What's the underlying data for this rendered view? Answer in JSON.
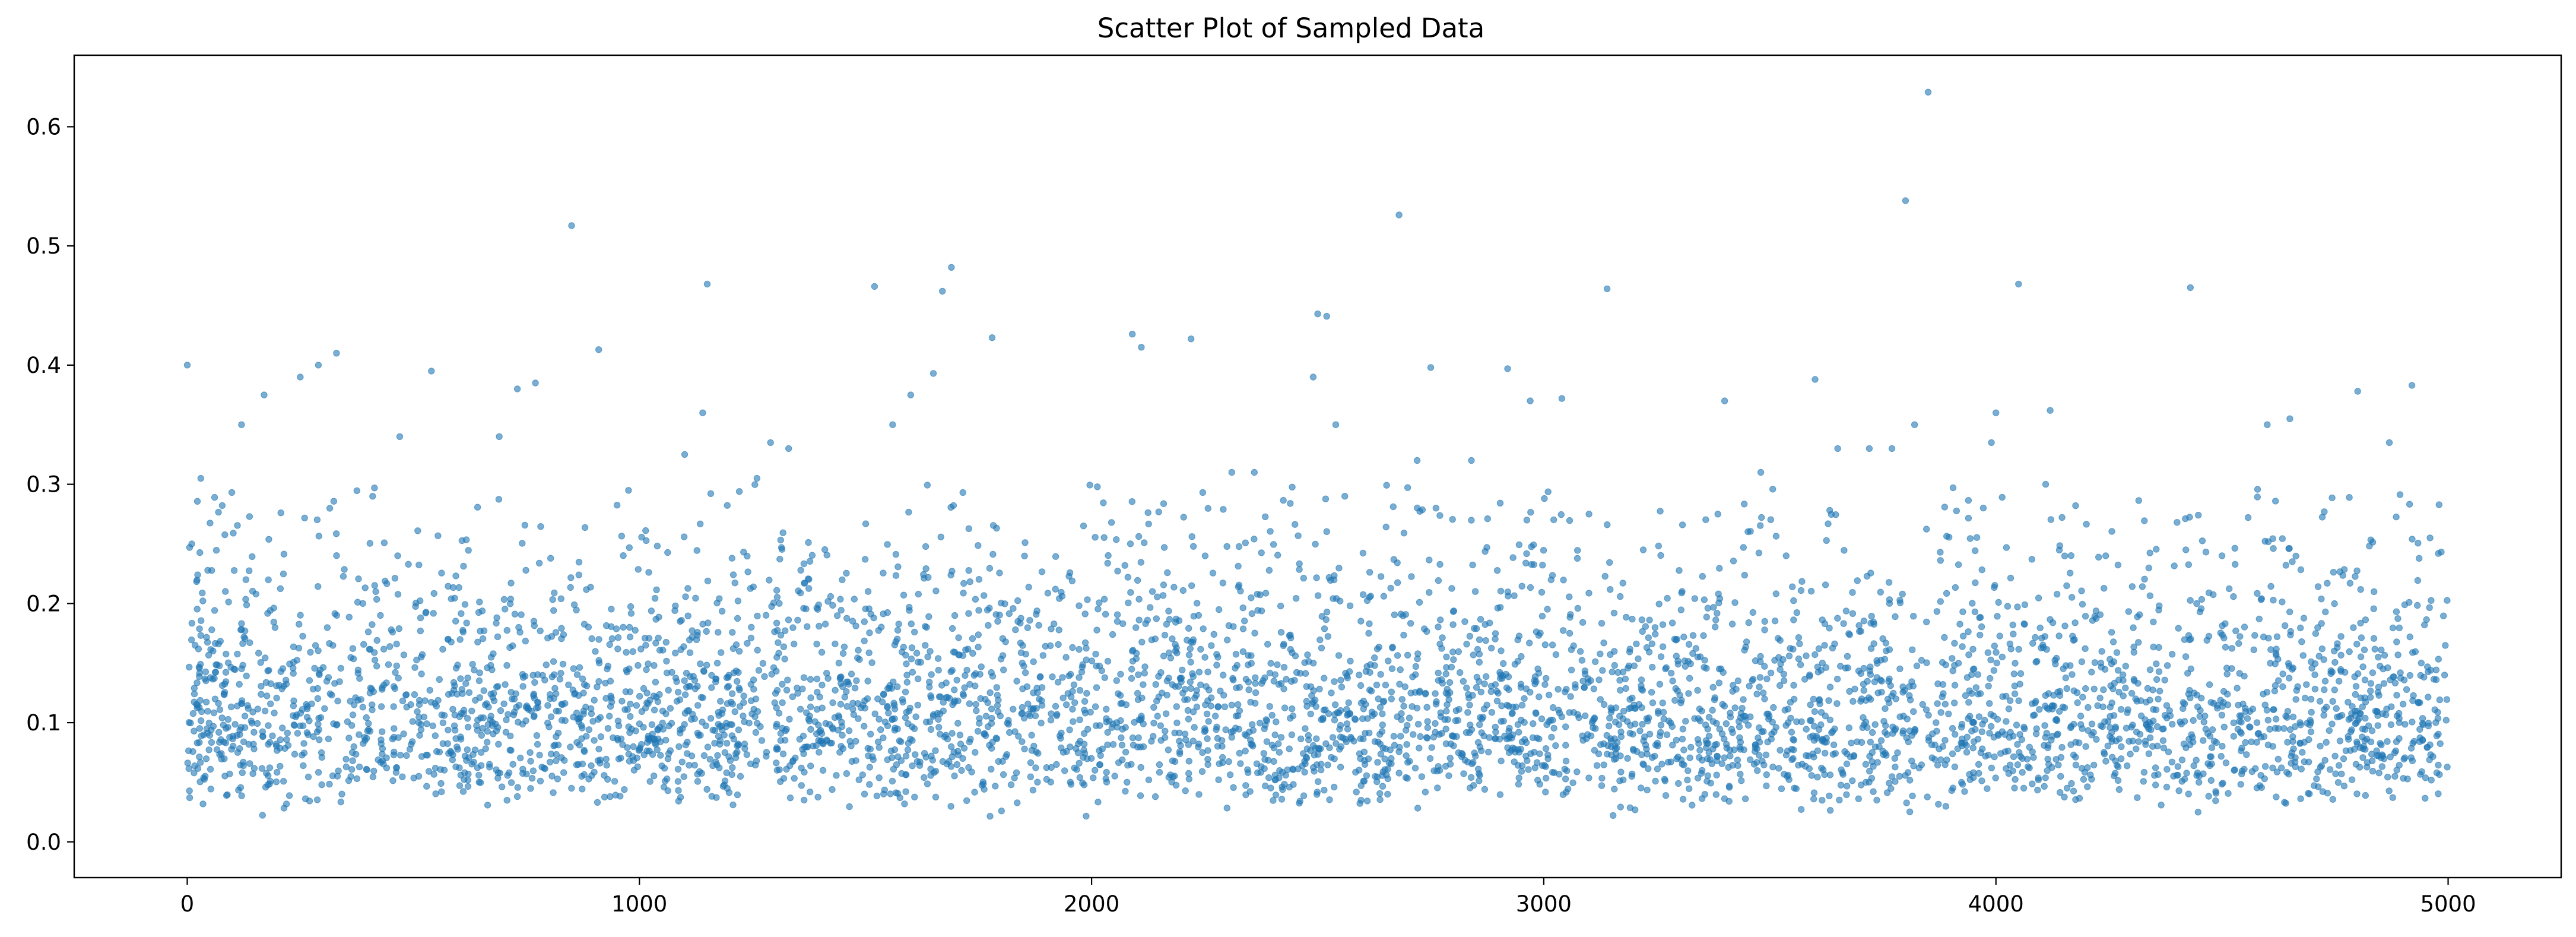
{
  "chart_data": {
    "type": "scatter",
    "title": "Scatter Plot of Sampled Data",
    "xlabel": "",
    "ylabel": "",
    "xlim": [
      -250,
      5250
    ],
    "ylim": [
      -0.03,
      0.66
    ],
    "xticks": [
      0,
      1000,
      2000,
      3000,
      4000,
      5000
    ],
    "xtick_labels": [
      "0",
      "1000",
      "2000",
      "3000",
      "4000",
      "5000"
    ],
    "yticks": [
      0.0,
      0.1,
      0.2,
      0.3,
      0.4,
      0.5,
      0.6
    ],
    "ytick_labels": [
      "0.0",
      "0.1",
      "0.2",
      "0.3",
      "0.4",
      "0.5",
      "0.6"
    ],
    "grid": false,
    "legend": "none",
    "marker_color": "#1f77b4",
    "marker_alpha": 0.6,
    "n_points": 5000,
    "x_range": [
      0,
      4999
    ],
    "y_median_approx": 0.11,
    "series": [
      {
        "x": [
          0,
          10,
          30,
          120,
          170,
          250,
          290,
          330,
          410,
          470,
          540,
          690,
          730,
          770,
          850,
          910,
          1100,
          1140,
          1150,
          1260,
          1290,
          1330,
          1520,
          1560,
          1600,
          1650,
          1670,
          1690,
          1780,
          2090,
          2110,
          2220,
          2310,
          2360,
          2490,
          2500,
          2520,
          2540,
          2560,
          2680,
          2720,
          2750,
          2840,
          2920,
          2970,
          3040,
          3100,
          3140,
          3220,
          3400,
          3480,
          3600,
          3650,
          3720,
          3770,
          3800,
          3820,
          3850,
          3990,
          4000,
          4050,
          4110,
          4120,
          4420,
          4430,
          4500,
          4600,
          4650,
          4800,
          4870,
          4920,
          4960
        ],
        "y": [
          0.4,
          0.25,
          0.305,
          0.35,
          0.375,
          0.39,
          0.4,
          0.41,
          0.29,
          0.34,
          0.395,
          0.34,
          0.38,
          0.385,
          0.517,
          0.413,
          0.325,
          0.36,
          0.468,
          0.305,
          0.335,
          0.33,
          0.466,
          0.35,
          0.375,
          0.393,
          0.462,
          0.482,
          0.423,
          0.426,
          0.415,
          0.422,
          0.31,
          0.31,
          0.39,
          0.443,
          0.441,
          0.35,
          0.29,
          0.526,
          0.32,
          0.398,
          0.32,
          0.397,
          0.37,
          0.372,
          0.275,
          0.464,
          0.245,
          0.37,
          0.31,
          0.388,
          0.33,
          0.33,
          0.33,
          0.538,
          0.35,
          0.629,
          0.335,
          0.36,
          0.468,
          0.3,
          0.362,
          0.245,
          0.465,
          0.24,
          0.35,
          0.355,
          0.378,
          0.335,
          0.383,
          0.255
        ]
      }
    ]
  }
}
